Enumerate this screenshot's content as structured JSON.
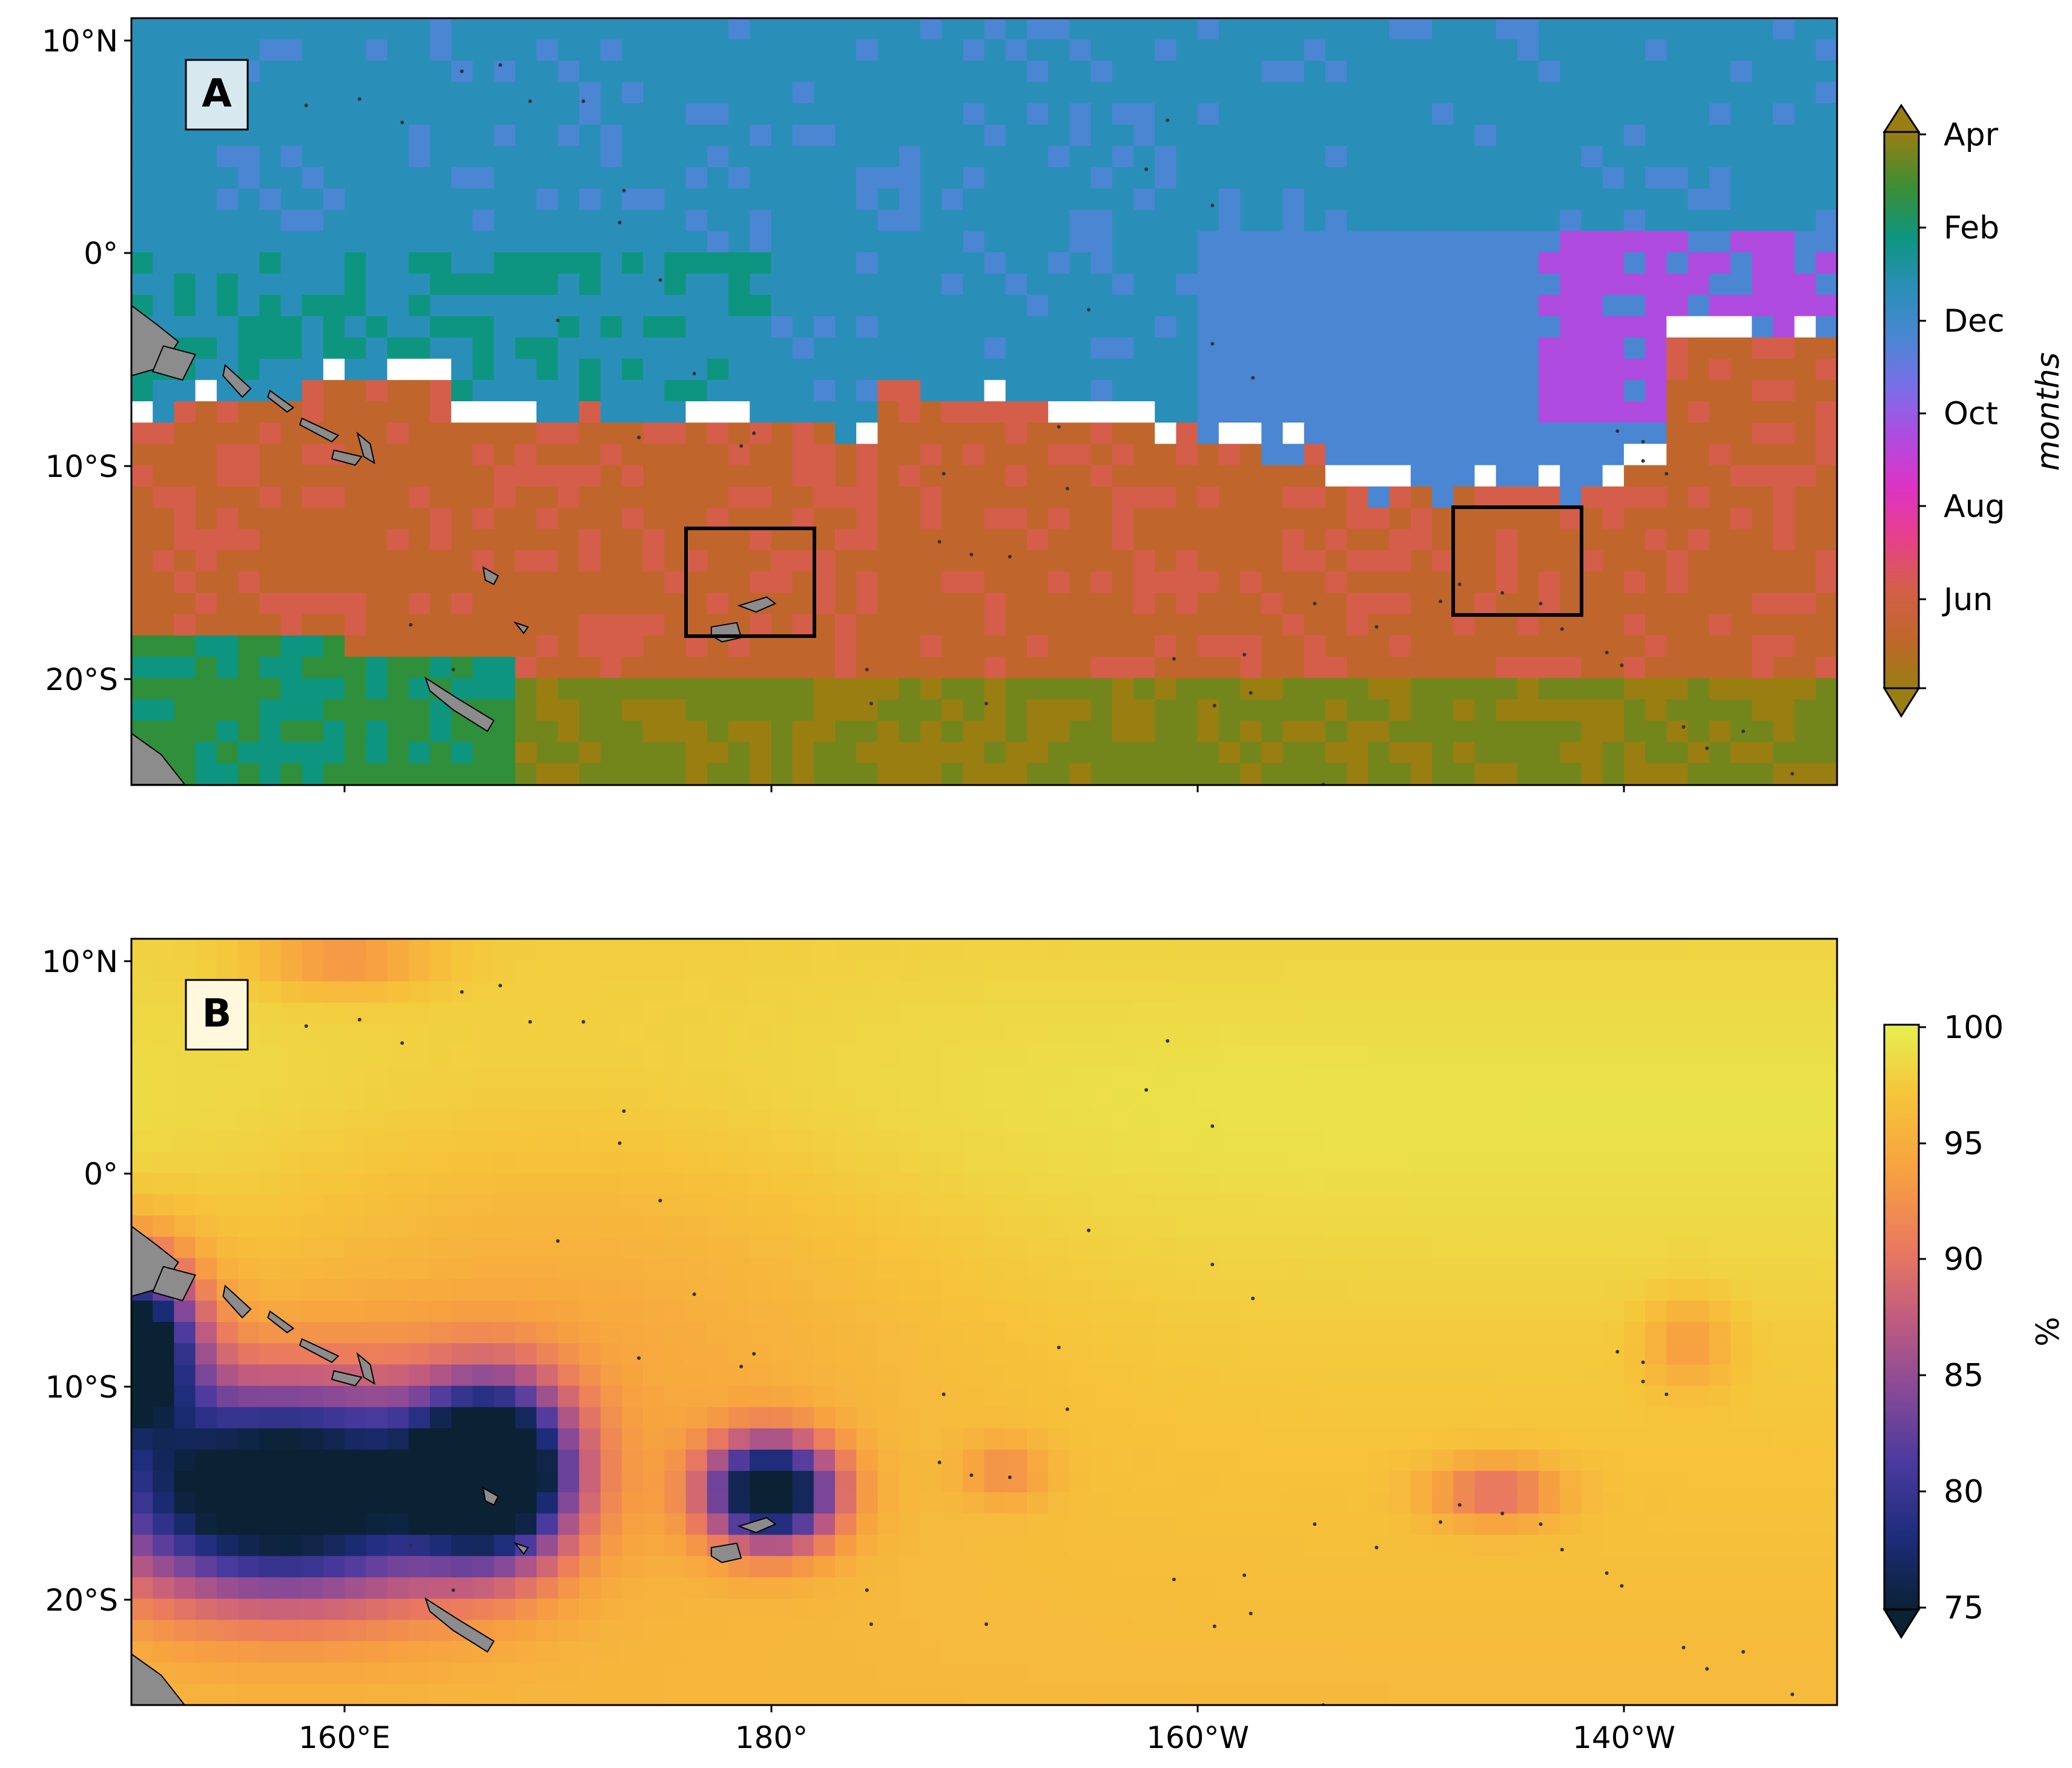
{
  "panels": [
    {
      "id": "A",
      "letter": "A",
      "kind": "categorical-months",
      "colorbar": {
        "label": "months",
        "ticks": [
          "Apr",
          "Feb",
          "Dec",
          "Oct",
          "Aug",
          "Jun"
        ],
        "extend": "both"
      },
      "boxes": [
        {
          "name": "fiji-box",
          "lon": [
            -176,
            -172
          ],
          "lat": [
            -18,
            -13
          ]
        },
        {
          "name": "tuamotu-box",
          "lon": [
            -148,
            -142
          ],
          "lat": [
            -17,
            -12
          ]
        }
      ]
    },
    {
      "id": "B",
      "letter": "B",
      "kind": "percent",
      "colorbar": {
        "label": "%",
        "ticks": [
          "100",
          "95",
          "90",
          "85",
          "80",
          "75"
        ],
        "range": [
          75,
          100
        ],
        "extend": "min"
      }
    }
  ],
  "axes": {
    "lon_range": [
      150,
      230
    ],
    "lat_range": [
      -25,
      11
    ],
    "y_ticks": [
      {
        "lat": 10,
        "label": "10°N"
      },
      {
        "lat": 0,
        "label": "0°"
      },
      {
        "lat": -10,
        "label": "10°S"
      },
      {
        "lat": -20,
        "label": "20°S"
      }
    ],
    "x_ticks": [
      {
        "lon": 160,
        "label": "160°E"
      },
      {
        "lon": 180,
        "label": "180°"
      },
      {
        "lon": 200,
        "label": "160°W"
      },
      {
        "lon": 220,
        "label": "140°W"
      }
    ]
  },
  "colors": {
    "land": "#8c8c8c",
    "no_data": "#ffffff",
    "months_palette": [
      "#9a7e12",
      "#73861c",
      "#2f8f3a",
      "#0e9580",
      "#2a8fb8",
      "#4a86d2",
      "#7a6ee8",
      "#b04be0",
      "#dd33c4",
      "#e8408a",
      "#d45e4a",
      "#c0662c"
    ],
    "percent_palette": [
      "#0a2233",
      "#1c2c7a",
      "#4a3a9e",
      "#8a4a96",
      "#c25c7e",
      "#ea7a5e",
      "#f7a140",
      "#f6c43a",
      "#e5f050"
    ]
  }
}
